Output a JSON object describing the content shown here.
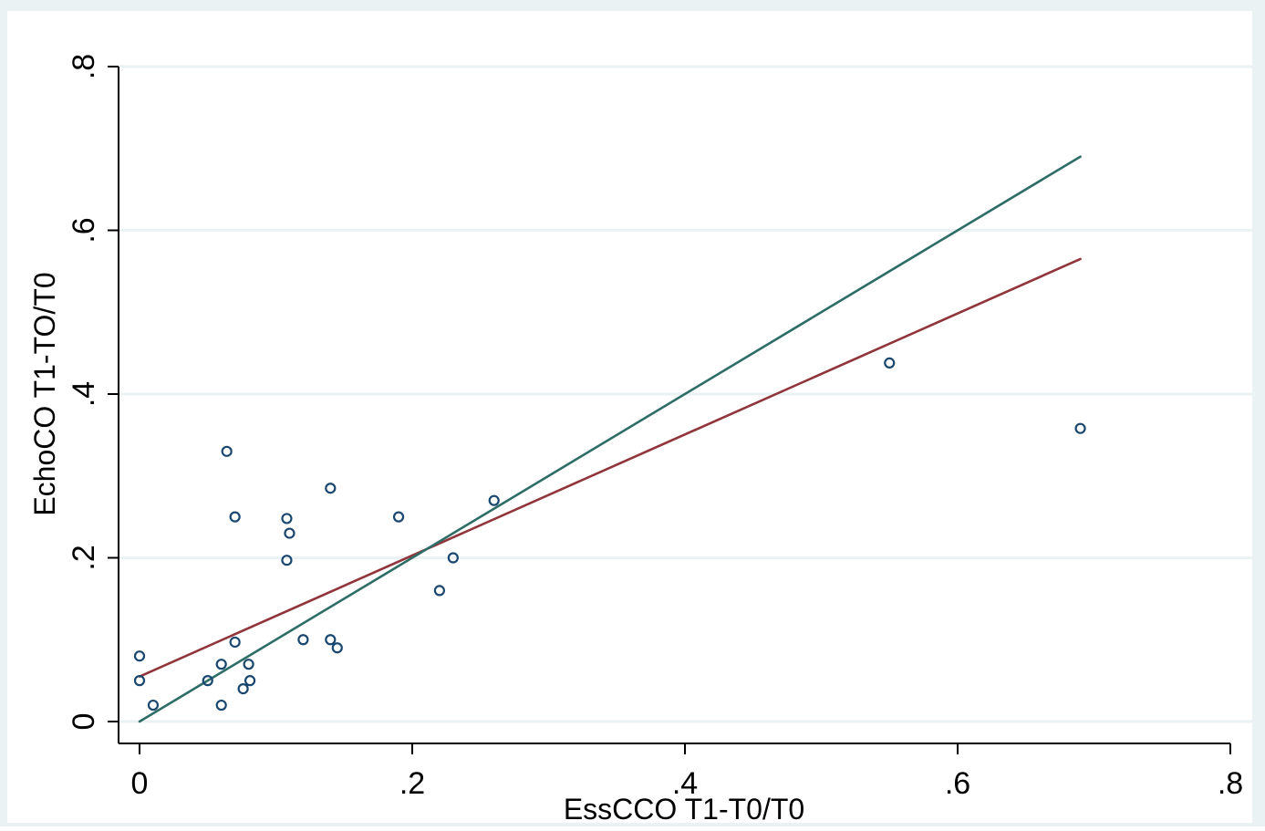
{
  "chart_data": {
    "type": "scatter",
    "title": "",
    "xlabel": "EssCCO T1-T0/T0",
    "ylabel": "EchoCO T1-TO/T0",
    "xlim": [
      0,
      0.8
    ],
    "ylim": [
      0,
      0.8
    ],
    "x_ticks": [
      0,
      0.2,
      0.4,
      0.6,
      0.8
    ],
    "x_tick_labels": [
      "0",
      ".2",
      ".4",
      ".6",
      ".8"
    ],
    "y_ticks": [
      0,
      0.2,
      0.4,
      0.6,
      0.8
    ],
    "y_tick_labels": [
      "0",
      ".2",
      ".4",
      ".6",
      ".8"
    ],
    "grid": "horizontal",
    "legend": "none",
    "colors": {
      "outer_background": "#eaf2f3",
      "plot_background": "#ffffff",
      "gridline": "#eaf2f3",
      "axis": "#000000",
      "marker": "#1a476f",
      "fit_line": "#90353b",
      "identity_line": "#2d6d66"
    },
    "series": [
      {
        "type": "scatter",
        "points": [
          [
            0.0,
            0.08
          ],
          [
            0.0,
            0.05
          ],
          [
            0.01,
            0.02
          ],
          [
            0.05,
            0.05
          ],
          [
            0.06,
            0.02
          ],
          [
            0.06,
            0.07
          ],
          [
            0.064,
            0.33
          ],
          [
            0.07,
            0.25
          ],
          [
            0.07,
            0.097
          ],
          [
            0.076,
            0.04
          ],
          [
            0.08,
            0.07
          ],
          [
            0.081,
            0.05
          ],
          [
            0.108,
            0.248
          ],
          [
            0.108,
            0.197
          ],
          [
            0.11,
            0.23
          ],
          [
            0.12,
            0.1
          ],
          [
            0.14,
            0.285
          ],
          [
            0.14,
            0.1
          ],
          [
            0.145,
            0.09
          ],
          [
            0.19,
            0.25
          ],
          [
            0.22,
            0.16
          ],
          [
            0.23,
            0.2
          ],
          [
            0.26,
            0.27
          ],
          [
            0.55,
            0.438
          ],
          [
            0.69,
            0.358
          ]
        ]
      },
      {
        "type": "line",
        "points": [
          [
            0.0,
            0.055
          ],
          [
            0.69,
            0.565
          ]
        ]
      },
      {
        "type": "line",
        "points": [
          [
            0.0,
            0.0
          ],
          [
            0.69,
            0.69
          ]
        ]
      }
    ]
  }
}
